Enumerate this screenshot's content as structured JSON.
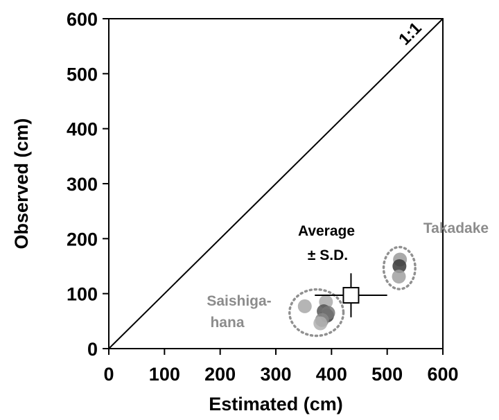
{
  "chart_data": {
    "type": "scatter",
    "xlabel": "Estimated (cm)",
    "ylabel": "Observed (cm)",
    "xlim": [
      0,
      600
    ],
    "ylim": [
      0,
      600
    ],
    "xticks": [
      "0",
      "100",
      "200",
      "300",
      "400",
      "500",
      "600"
    ],
    "yticks": [
      "0",
      "100",
      "200",
      "300",
      "400",
      "500",
      "600"
    ],
    "grid": false,
    "reference_line": {
      "label": "1:1",
      "from": [
        0,
        0
      ],
      "to": [
        600,
        600
      ]
    },
    "groups": [
      {
        "name": "Saishiga-\nhana",
        "label_lines": [
          "Saishiga-",
          "hana"
        ],
        "points": [
          [
            352,
            77
          ],
          [
            390,
            85
          ],
          [
            392,
            60
          ],
          [
            386,
            68
          ],
          [
            394,
            65
          ],
          [
            383,
            52
          ],
          [
            380,
            46
          ]
        ],
        "shades": [
          "#a8a8a8",
          "#aaaaaa",
          "#3a3a3a",
          "#555555",
          "#777777",
          "#8a8a8a",
          "#b0b0b0"
        ]
      },
      {
        "name": "Takadake",
        "label_lines": [
          "Takadake"
        ],
        "points": [
          [
            523,
            162
          ],
          [
            522,
            150
          ],
          [
            521,
            131
          ]
        ],
        "shades": [
          "#9a9a9a",
          "#3a3a3a",
          "#a0a0a0"
        ]
      }
    ],
    "average": {
      "label_lines": [
        "Average",
        "± S.D."
      ],
      "x": 435,
      "y": 97,
      "x_sd": 65,
      "y_sd": 40
    }
  },
  "colors": {
    "axis": "#000000",
    "label_gray": "#8c8c8c",
    "ellipse": "#909090"
  }
}
